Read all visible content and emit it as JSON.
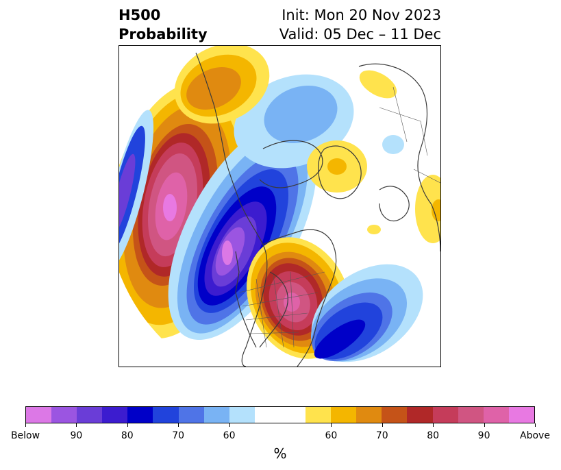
{
  "header": {
    "title_line1": "H500",
    "title_line2": "Probability",
    "init_text": "Init: Mon 20 Nov 2023",
    "valid_text": "Valid: 05 Dec – 11 Dec"
  },
  "colorbar": {
    "unit_label": "%",
    "below_colors": [
      "#dc78e6",
      "#9b55e1",
      "#6a3dd7",
      "#3c1ccf",
      "#0000c8",
      "#2143dc",
      "#4f74e7",
      "#79b3f4",
      "#b4e1fc"
    ],
    "neutral_color": "#ffffff",
    "above_colors": [
      "#ffe34d",
      "#f4b600",
      "#e08a10",
      "#c55318",
      "#b02828",
      "#c53c5a",
      "#d05582",
      "#df62a8",
      "#e879e2"
    ],
    "tick_labels": [
      "Below",
      "90",
      "80",
      "70",
      "60",
      "60",
      "70",
      "80",
      "90",
      "Above"
    ]
  }
}
